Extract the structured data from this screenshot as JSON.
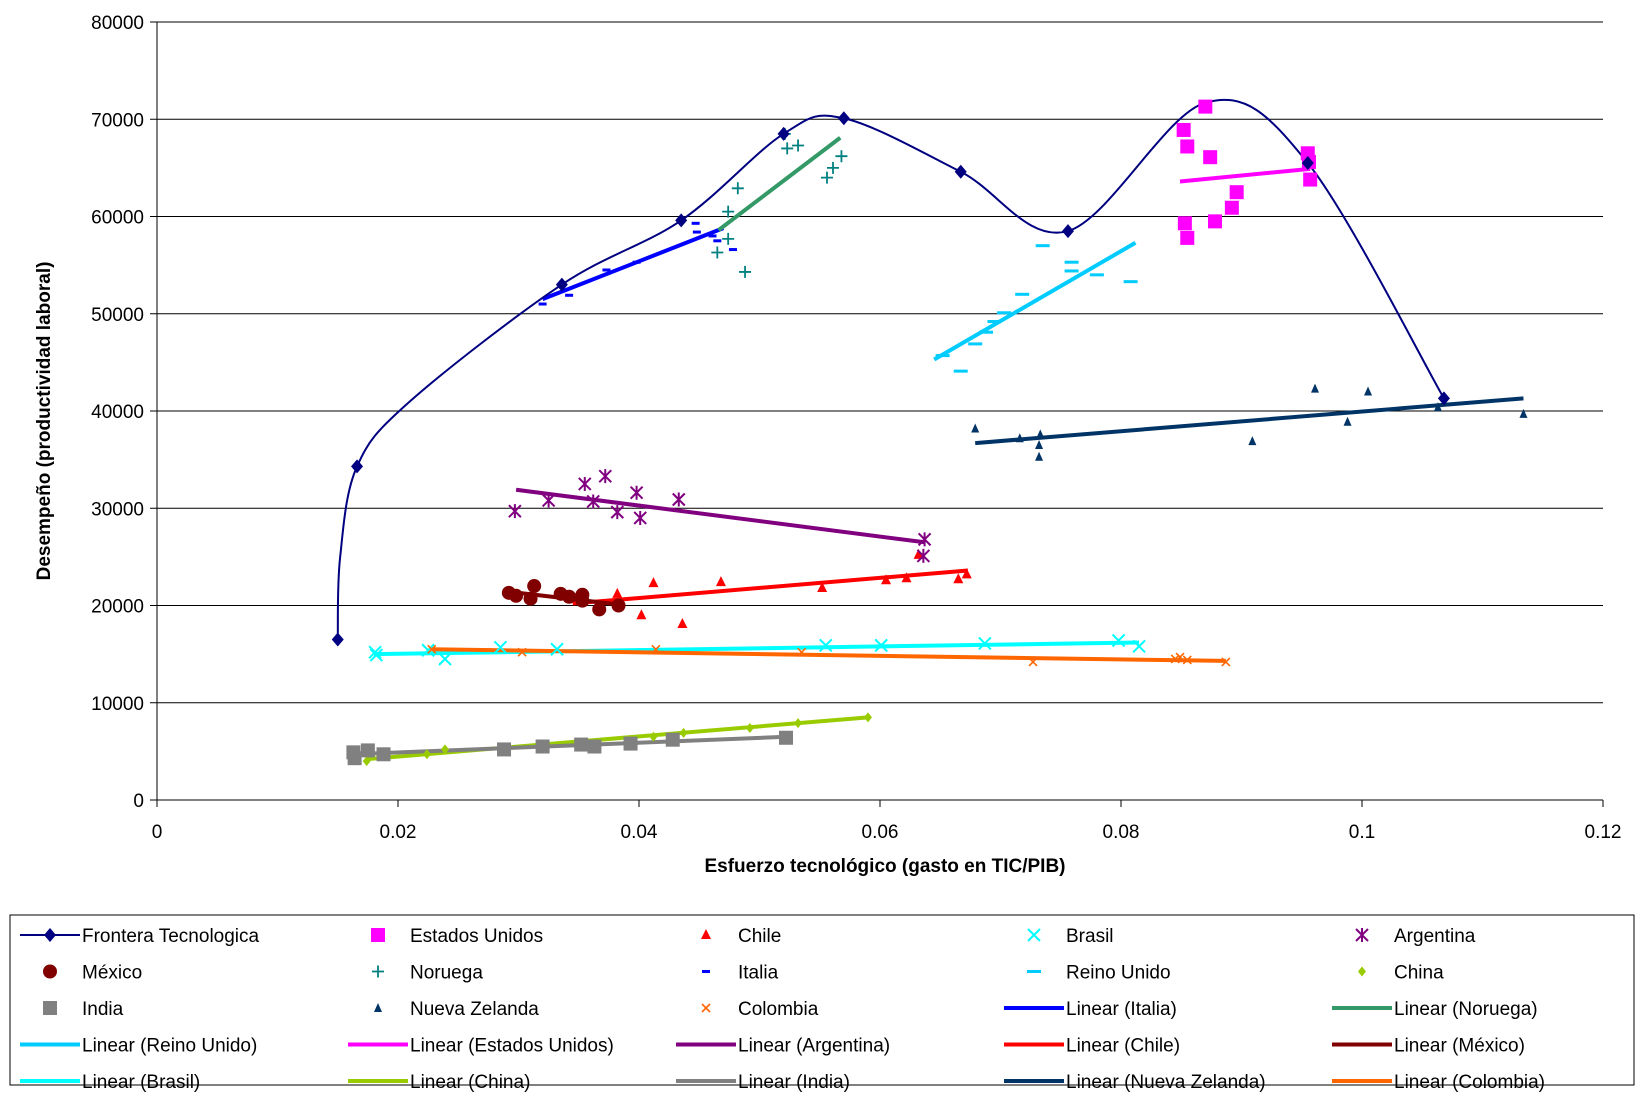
{
  "chart_data": {
    "type": "scatter",
    "title": "",
    "xlabel": "Esfuerzo tecnológico (gasto en TIC/PIB)",
    "ylabel": "Desempeño  (productividad laboral)",
    "xlim": [
      0,
      0.12
    ],
    "ylim": [
      0,
      80000
    ],
    "x_ticks": [
      "0",
      "0.02",
      "0.04",
      "0.06",
      "0.08",
      "0.1",
      "0.12"
    ],
    "y_ticks": [
      "0",
      "10000",
      "20000",
      "30000",
      "40000",
      "50000",
      "60000",
      "70000",
      "80000"
    ],
    "grid": "horizontal",
    "legend_position": "bottom",
    "frontier": {
      "name": "Frontera Tecnologica",
      "color": "#000080",
      "marker": "diamond",
      "points": [
        [
          0.015,
          16500
        ],
        [
          0.0166,
          34300
        ],
        [
          0.0336,
          53000
        ],
        [
          0.0435,
          59600
        ],
        [
          0.052,
          68500
        ],
        [
          0.057,
          70100
        ],
        [
          0.0667,
          64600
        ],
        [
          0.0756,
          58500
        ],
        [
          0.0955,
          65500
        ],
        [
          0.1068,
          41300
        ]
      ],
      "curve_path": [
        [
          0.015,
          16500
        ],
        [
          0.0152,
          25000
        ],
        [
          0.0166,
          34300
        ],
        [
          0.021,
          41000
        ],
        [
          0.0336,
          53000
        ],
        [
          0.0435,
          59600
        ],
        [
          0.052,
          68500
        ],
        [
          0.057,
          70100
        ],
        [
          0.0667,
          64600
        ],
        [
          0.0756,
          58500
        ],
        [
          0.087,
          71700
        ],
        [
          0.0955,
          65500
        ],
        [
          0.1068,
          41300
        ]
      ]
    },
    "series": [
      {
        "name": "Estados Unidos",
        "color": "#FF00FF",
        "marker": "square",
        "points": [
          [
            0.0852,
            68900
          ],
          [
            0.0855,
            67200
          ],
          [
            0.087,
            71300
          ],
          [
            0.0874,
            66100
          ],
          [
            0.0853,
            59300
          ],
          [
            0.0878,
            59500
          ],
          [
            0.0892,
            60900
          ],
          [
            0.0896,
            62500
          ],
          [
            0.0855,
            57800
          ],
          [
            0.0955,
            66500
          ],
          [
            0.0956,
            65600
          ],
          [
            0.0957,
            63800
          ]
        ]
      },
      {
        "name": "Chile",
        "color": "#FF0000",
        "marker": "triangle",
        "points": [
          [
            0.0382,
            21200
          ],
          [
            0.0402,
            19000
          ],
          [
            0.0412,
            22300
          ],
          [
            0.0436,
            18100
          ],
          [
            0.0468,
            22400
          ],
          [
            0.0552,
            21800
          ],
          [
            0.0605,
            22600
          ],
          [
            0.0622,
            22800
          ],
          [
            0.0632,
            25200
          ],
          [
            0.0665,
            22700
          ],
          [
            0.0672,
            23200
          ]
        ]
      },
      {
        "name": "Brasil",
        "color": "#00FFFF",
        "marker": "x",
        "points": [
          [
            0.0181,
            15200
          ],
          [
            0.0182,
            14900
          ],
          [
            0.0225,
            15400
          ],
          [
            0.0239,
            14500
          ],
          [
            0.0285,
            15700
          ],
          [
            0.0332,
            15500
          ],
          [
            0.0555,
            15900
          ],
          [
            0.0601,
            15900
          ],
          [
            0.0687,
            16100
          ],
          [
            0.0798,
            16400
          ],
          [
            0.0815,
            15800
          ]
        ]
      },
      {
        "name": "Argentina",
        "color": "#800080",
        "marker": "star",
        "points": [
          [
            0.0297,
            29700
          ],
          [
            0.0325,
            30800
          ],
          [
            0.0355,
            32500
          ],
          [
            0.0372,
            33300
          ],
          [
            0.0362,
            30700
          ],
          [
            0.0382,
            29600
          ],
          [
            0.0398,
            31600
          ],
          [
            0.0401,
            29000
          ],
          [
            0.0433,
            30900
          ],
          [
            0.0637,
            26800
          ],
          [
            0.0636,
            25100
          ]
        ]
      },
      {
        "name": "México",
        "color": "#800000",
        "marker": "circle",
        "points": [
          [
            0.0292,
            21300
          ],
          [
            0.0298,
            21000
          ],
          [
            0.0313,
            22000
          ],
          [
            0.031,
            20700
          ],
          [
            0.0335,
            21200
          ],
          [
            0.0342,
            20900
          ],
          [
            0.0353,
            21100
          ],
          [
            0.0353,
            20500
          ],
          [
            0.0367,
            19600
          ],
          [
            0.0383,
            20000
          ]
        ]
      },
      {
        "name": "Noruega",
        "color": "#008080",
        "marker": "plus",
        "points": [
          [
            0.0474,
            60500
          ],
          [
            0.0482,
            62900
          ],
          [
            0.0465,
            56300
          ],
          [
            0.0474,
            57700
          ],
          [
            0.0488,
            54300
          ],
          [
            0.0523,
            67000
          ],
          [
            0.0532,
            67300
          ],
          [
            0.0556,
            64000
          ],
          [
            0.0561,
            65000
          ],
          [
            0.0568,
            66200
          ],
          [
            0.0521,
            68500
          ]
        ]
      },
      {
        "name": "Italia",
        "color": "#0000FF",
        "marker": "dash",
        "points": [
          [
            0.032,
            51000
          ],
          [
            0.0342,
            51900
          ],
          [
            0.0373,
            54500
          ],
          [
            0.0398,
            55300
          ],
          [
            0.0447,
            59300
          ],
          [
            0.0448,
            58400
          ],
          [
            0.0465,
            57500
          ],
          [
            0.0478,
            56600
          ],
          [
            0.0461,
            58000
          ]
        ]
      },
      {
        "name": "Reino Unido",
        "color": "#00CCFF",
        "marker": "wide-dash",
        "points": [
          [
            0.0652,
            45700
          ],
          [
            0.0667,
            44100
          ],
          [
            0.0679,
            46900
          ],
          [
            0.0688,
            48100
          ],
          [
            0.0695,
            49200
          ],
          [
            0.0703,
            50100
          ],
          [
            0.0718,
            52000
          ],
          [
            0.0735,
            57000
          ],
          [
            0.0759,
            55300
          ],
          [
            0.0759,
            54400
          ],
          [
            0.078,
            54000
          ],
          [
            0.0808,
            53300
          ]
        ]
      },
      {
        "name": "China",
        "color": "#99CC00",
        "marker": "small-diamond",
        "points": [
          [
            0.0174,
            4000
          ],
          [
            0.0239,
            5200
          ],
          [
            0.0224,
            4700
          ],
          [
            0.0412,
            6500
          ],
          [
            0.0437,
            6900
          ],
          [
            0.0492,
            7400
          ],
          [
            0.0532,
            7900
          ],
          [
            0.059,
            8500
          ]
        ]
      },
      {
        "name": "India",
        "color": "#808080",
        "marker": "square",
        "points": [
          [
            0.0163,
            4900
          ],
          [
            0.0164,
            4300
          ],
          [
            0.0175,
            5100
          ],
          [
            0.0188,
            4700
          ],
          [
            0.0288,
            5200
          ],
          [
            0.032,
            5500
          ],
          [
            0.0352,
            5700
          ],
          [
            0.0363,
            5500
          ],
          [
            0.0393,
            5800
          ],
          [
            0.0428,
            6200
          ],
          [
            0.0522,
            6400
          ]
        ]
      },
      {
        "name": "Nueva Zelanda",
        "color": "#003366",
        "marker": "small-triangle",
        "points": [
          [
            0.0679,
            38200
          ],
          [
            0.0716,
            37200
          ],
          [
            0.0732,
            36500
          ],
          [
            0.0732,
            35300
          ],
          [
            0.0733,
            37600
          ],
          [
            0.0909,
            36900
          ],
          [
            0.0961,
            42300
          ],
          [
            0.0988,
            38900
          ],
          [
            0.1005,
            42000
          ],
          [
            0.1063,
            40400
          ],
          [
            0.1134,
            39700
          ]
        ]
      },
      {
        "name": "Colombia",
        "color": "#FF6600",
        "marker": "small-x",
        "points": [
          [
            0.0228,
            15500
          ],
          [
            0.0303,
            15200
          ],
          [
            0.0414,
            15500
          ],
          [
            0.0535,
            15200
          ],
          [
            0.0727,
            14200
          ],
          [
            0.0845,
            14500
          ],
          [
            0.0849,
            14700
          ],
          [
            0.0855,
            14400
          ],
          [
            0.0887,
            14200
          ]
        ]
      }
    ],
    "trendlines": [
      {
        "name": "Linear (Italia)",
        "color": "#0000FF",
        "x": [
          0.032,
          0.047
        ],
        "y": [
          51500,
          58800
        ]
      },
      {
        "name": "Linear (Noruega)",
        "color": "#339966",
        "x": [
          0.0466,
          0.0567
        ],
        "y": [
          58600,
          68100
        ]
      },
      {
        "name": "Linear (Reino Unido)",
        "color": "#00CCFF",
        "x": [
          0.0645,
          0.0812
        ],
        "y": [
          45300,
          57300
        ]
      },
      {
        "name": "Linear (Estados Unidos)",
        "color": "#FF00FF",
        "x": [
          0.0849,
          0.0957
        ],
        "y": [
          63600,
          64900
        ]
      },
      {
        "name": "Linear (Argentina)",
        "color": "#800080",
        "x": [
          0.0298,
          0.0637
        ],
        "y": [
          31900,
          26500
        ]
      },
      {
        "name": "Linear (Chile)",
        "color": "#FF0000",
        "x": [
          0.0345,
          0.0673
        ],
        "y": [
          20200,
          23600
        ]
      },
      {
        "name": "Linear (México)",
        "color": "#800000",
        "x": [
          0.0293,
          0.0383
        ],
        "y": [
          21400,
          20100
        ]
      },
      {
        "name": "Linear (Brasil)",
        "color": "#00FFFF",
        "x": [
          0.018,
          0.0815
        ],
        "y": [
          15000,
          16200
        ]
      },
      {
        "name": "Linear (China)",
        "color": "#99CC00",
        "x": [
          0.0174,
          0.059
        ],
        "y": [
          4200,
          8500
        ]
      },
      {
        "name": "Linear (India)",
        "color": "#808080",
        "x": [
          0.0163,
          0.0522
        ],
        "y": [
          4700,
          6500
        ]
      },
      {
        "name": "Linear (Nueva Zelanda)",
        "color": "#003366",
        "x": [
          0.0679,
          0.1134
        ],
        "y": [
          36700,
          41300
        ]
      },
      {
        "name": "Linear (Colombia)",
        "color": "#FF6600",
        "x": [
          0.0228,
          0.0887
        ],
        "y": [
          15500,
          14300
        ]
      }
    ],
    "legend": [
      {
        "label": "Frontera Tecnologica",
        "kind": "line-marker",
        "marker": "diamond",
        "color": "#000080"
      },
      {
        "label": "Estados Unidos",
        "kind": "marker",
        "marker": "square",
        "color": "#FF00FF"
      },
      {
        "label": "Chile",
        "kind": "marker",
        "marker": "triangle",
        "color": "#FF0000"
      },
      {
        "label": "Brasil",
        "kind": "marker",
        "marker": "x",
        "color": "#00FFFF"
      },
      {
        "label": "Argentina",
        "kind": "marker",
        "marker": "star",
        "color": "#800080"
      },
      {
        "label": "México",
        "kind": "marker",
        "marker": "circle",
        "color": "#800000"
      },
      {
        "label": "Noruega",
        "kind": "marker",
        "marker": "plus",
        "color": "#008080"
      },
      {
        "label": "Italia",
        "kind": "marker",
        "marker": "dash",
        "color": "#0000FF"
      },
      {
        "label": "Reino Unido",
        "kind": "marker",
        "marker": "wide-dash",
        "color": "#00CCFF"
      },
      {
        "label": "China",
        "kind": "marker",
        "marker": "small-diamond",
        "color": "#99CC00"
      },
      {
        "label": "India",
        "kind": "marker",
        "marker": "square",
        "color": "#808080"
      },
      {
        "label": "Nueva Zelanda",
        "kind": "marker",
        "marker": "small-triangle",
        "color": "#003366"
      },
      {
        "label": "Colombia",
        "kind": "marker",
        "marker": "small-x",
        "color": "#FF6600"
      },
      {
        "label": "Linear (Italia)",
        "kind": "line",
        "color": "#0000FF"
      },
      {
        "label": "Linear (Noruega)",
        "kind": "line",
        "color": "#339966"
      },
      {
        "label": "Linear (Reino Unido)",
        "kind": "line",
        "color": "#00CCFF"
      },
      {
        "label": "Linear (Estados Unidos)",
        "kind": "line",
        "color": "#FF00FF"
      },
      {
        "label": "Linear (Argentina)",
        "kind": "line",
        "color": "#800080"
      },
      {
        "label": "Linear (Chile)",
        "kind": "line",
        "color": "#FF0000"
      },
      {
        "label": "Linear (México)",
        "kind": "line",
        "color": "#800000"
      },
      {
        "label": "Linear (Brasil)",
        "kind": "line",
        "color": "#00FFFF"
      },
      {
        "label": "Linear (China)",
        "kind": "line",
        "color": "#99CC00"
      },
      {
        "label": "Linear (India)",
        "kind": "line",
        "color": "#808080"
      },
      {
        "label": "Linear (Nueva Zelanda)",
        "kind": "line",
        "color": "#003366"
      },
      {
        "label": "Linear (Colombia)",
        "kind": "line",
        "color": "#FF6600"
      }
    ]
  }
}
